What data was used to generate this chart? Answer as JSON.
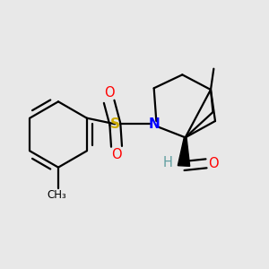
{
  "bg_color": "#e8e8e8",
  "atom_colors": {
    "N": "#0000ff",
    "S": "#ccaa00",
    "O": "#ff0000",
    "H": "#5f9ea0",
    "C": "#000000"
  },
  "bond_color": "#000000",
  "bond_width": 1.6,
  "font_size_atom": 10.5,
  "figsize": [
    3.0,
    3.0
  ],
  "dpi": 100
}
